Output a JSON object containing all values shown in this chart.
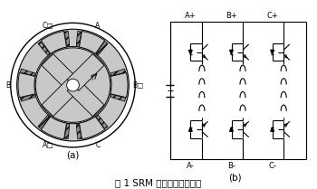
{
  "title": "图 1 SRM 电机框图和主电路",
  "label_a": "(a)",
  "label_b": "(b)",
  "bg_color": "#ffffff",
  "lc": "#000000",
  "gray1": "#c8c8c8",
  "gray2": "#a8a8a8",
  "pole_angles": [
    67.5,
    112.5,
    180.0,
    0.0,
    247.5,
    292.5
  ],
  "pole_labels": [
    "A",
    "C",
    "B",
    "B",
    "A",
    "C"
  ],
  "pole_dots": [
    false,
    true,
    false,
    true,
    true,
    false
  ]
}
